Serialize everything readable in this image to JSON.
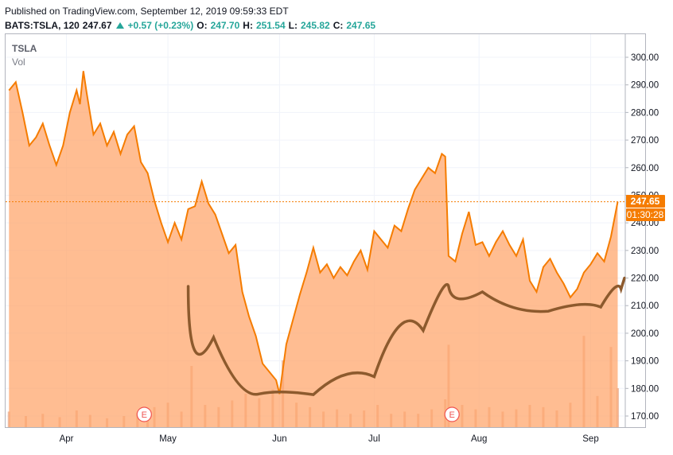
{
  "header": {
    "published": "Published on TradingView.com, September 12, 2019 09:59:33 EDT",
    "symbol": "BATS:TSLA, 120",
    "last": "247.67",
    "change": "+0.57 (+0.23%)",
    "open_label": "O:",
    "open": "247.70",
    "high_label": "H:",
    "high": "251.54",
    "low_label": "L:",
    "low": "245.82",
    "close_label": "C:",
    "close": "247.65"
  },
  "legend": {
    "symbol": "TSLA",
    "volume": "Vol"
  },
  "price_label": "247.65",
  "countdown_label": "01:30:28",
  "earnings_marker": "E",
  "colors": {
    "line": "#f57c00",
    "area": "#ffa76e",
    "up": "#26a69a",
    "annotation": "#8d5a2d"
  },
  "chart_data": {
    "type": "area",
    "title": "TSLA",
    "ylim": [
      166,
      305
    ],
    "y_ticks": [
      "300.00",
      "290.00",
      "280.00",
      "270.00",
      "260.00",
      "250.00",
      "240.00",
      "230.00",
      "220.00",
      "210.00",
      "200.00",
      "190.00",
      "180.00",
      "170.00"
    ],
    "x_ticks": [
      "Apr",
      "May",
      "Jun",
      "Jul",
      "Aug",
      "Sep"
    ],
    "last_price": 247.65,
    "series": [
      {
        "values": [
          [
            "2019-03-15",
            288
          ],
          [
            "2019-03-17",
            291
          ],
          [
            "2019-03-19",
            280
          ],
          [
            "2019-03-21",
            268
          ],
          [
            "2019-03-23",
            271
          ],
          [
            "2019-03-25",
            276
          ],
          [
            "2019-03-27",
            268
          ],
          [
            "2019-03-29",
            261
          ],
          [
            "2019-03-31",
            268
          ],
          [
            "2019-04-02",
            280
          ],
          [
            "2019-04-04",
            288
          ],
          [
            "2019-04-05",
            283
          ],
          [
            "2019-04-06",
            295
          ],
          [
            "2019-04-07",
            287
          ],
          [
            "2019-04-09",
            272
          ],
          [
            "2019-04-11",
            276
          ],
          [
            "2019-04-13",
            268
          ],
          [
            "2019-04-15",
            273
          ],
          [
            "2019-04-17",
            265
          ],
          [
            "2019-04-19",
            272
          ],
          [
            "2019-04-21",
            275
          ],
          [
            "2019-04-23",
            262
          ],
          [
            "2019-04-25",
            258
          ],
          [
            "2019-04-27",
            248
          ],
          [
            "2019-04-29",
            240
          ],
          [
            "2019-05-01",
            233
          ],
          [
            "2019-05-03",
            240
          ],
          [
            "2019-05-05",
            234
          ],
          [
            "2019-05-07",
            245
          ],
          [
            "2019-05-09",
            246
          ],
          [
            "2019-05-11",
            255
          ],
          [
            "2019-05-13",
            247
          ],
          [
            "2019-05-15",
            243
          ],
          [
            "2019-05-17",
            236
          ],
          [
            "2019-05-19",
            229
          ],
          [
            "2019-05-21",
            232
          ],
          [
            "2019-05-23",
            215
          ],
          [
            "2019-05-25",
            206
          ],
          [
            "2019-05-27",
            199
          ],
          [
            "2019-05-29",
            189
          ],
          [
            "2019-05-31",
            186
          ],
          [
            "2019-06-02",
            183
          ],
          [
            "2019-06-03",
            178
          ],
          [
            "2019-06-05",
            196
          ],
          [
            "2019-06-07",
            205
          ],
          [
            "2019-06-09",
            214
          ],
          [
            "2019-06-11",
            222
          ],
          [
            "2019-06-13",
            231
          ],
          [
            "2019-06-15",
            222
          ],
          [
            "2019-06-17",
            225
          ],
          [
            "2019-06-19",
            220
          ],
          [
            "2019-06-21",
            224
          ],
          [
            "2019-06-23",
            221
          ],
          [
            "2019-06-25",
            226
          ],
          [
            "2019-06-27",
            230
          ],
          [
            "2019-06-29",
            223
          ],
          [
            "2019-07-01",
            237
          ],
          [
            "2019-07-03",
            234
          ],
          [
            "2019-07-05",
            231
          ],
          [
            "2019-07-07",
            239
          ],
          [
            "2019-07-09",
            237
          ],
          [
            "2019-07-11",
            245
          ],
          [
            "2019-07-13",
            252
          ],
          [
            "2019-07-15",
            256
          ],
          [
            "2019-07-17",
            260
          ],
          [
            "2019-07-19",
            258
          ],
          [
            "2019-07-21",
            265
          ],
          [
            "2019-07-22",
            264
          ],
          [
            "2019-07-23",
            228
          ],
          [
            "2019-07-25",
            226
          ],
          [
            "2019-07-27",
            236
          ],
          [
            "2019-07-29",
            244
          ],
          [
            "2019-07-31",
            232
          ],
          [
            "2019-08-02",
            233
          ],
          [
            "2019-08-04",
            228
          ],
          [
            "2019-08-06",
            233
          ],
          [
            "2019-08-08",
            237
          ],
          [
            "2019-08-10",
            232
          ],
          [
            "2019-08-12",
            228
          ],
          [
            "2019-08-14",
            234
          ],
          [
            "2019-08-16",
            219
          ],
          [
            "2019-08-18",
            215
          ],
          [
            "2019-08-20",
            224
          ],
          [
            "2019-08-22",
            227
          ],
          [
            "2019-08-24",
            222
          ],
          [
            "2019-08-26",
            218
          ],
          [
            "2019-08-28",
            213
          ],
          [
            "2019-08-30",
            216
          ],
          [
            "2019-09-01",
            222
          ],
          [
            "2019-09-03",
            225
          ],
          [
            "2019-09-05",
            229
          ],
          [
            "2019-09-07",
            226
          ],
          [
            "2019-09-09",
            235
          ],
          [
            "2019-09-11",
            247.65
          ]
        ]
      }
    ],
    "volume_ylim": [
      0,
      100
    ],
    "volume": [
      [
        "2019-03-15",
        14
      ],
      [
        "2019-03-20",
        10
      ],
      [
        "2019-03-25",
        12
      ],
      [
        "2019-03-30",
        9
      ],
      [
        "2019-04-04",
        15
      ],
      [
        "2019-04-08",
        11
      ],
      [
        "2019-04-13",
        8
      ],
      [
        "2019-04-18",
        10
      ],
      [
        "2019-04-22",
        13
      ],
      [
        "2019-04-25",
        12
      ],
      [
        "2019-04-27",
        18
      ],
      [
        "2019-05-01",
        22
      ],
      [
        "2019-05-05",
        14
      ],
      [
        "2019-05-08",
        55
      ],
      [
        "2019-05-12",
        20
      ],
      [
        "2019-05-16",
        18
      ],
      [
        "2019-05-20",
        24
      ],
      [
        "2019-05-24",
        30
      ],
      [
        "2019-05-28",
        26
      ],
      [
        "2019-06-01",
        34
      ],
      [
        "2019-06-04",
        60
      ],
      [
        "2019-06-08",
        22
      ],
      [
        "2019-06-12",
        18
      ],
      [
        "2019-06-16",
        14
      ],
      [
        "2019-06-20",
        16
      ],
      [
        "2019-06-24",
        12
      ],
      [
        "2019-06-28",
        15
      ],
      [
        "2019-07-02",
        20
      ],
      [
        "2019-07-06",
        12
      ],
      [
        "2019-07-10",
        14
      ],
      [
        "2019-07-14",
        12
      ],
      [
        "2019-07-18",
        16
      ],
      [
        "2019-07-22",
        25
      ],
      [
        "2019-07-23",
        74
      ],
      [
        "2019-07-27",
        20
      ],
      [
        "2019-07-31",
        16
      ],
      [
        "2019-08-04",
        18
      ],
      [
        "2019-08-08",
        14
      ],
      [
        "2019-08-12",
        16
      ],
      [
        "2019-08-16",
        20
      ],
      [
        "2019-08-20",
        18
      ],
      [
        "2019-08-24",
        15
      ],
      [
        "2019-08-28",
        22
      ],
      [
        "2019-09-01",
        82
      ],
      [
        "2019-09-05",
        28
      ],
      [
        "2019-09-09",
        72
      ],
      [
        "2019-09-11",
        35
      ]
    ],
    "earnings_dates": [
      "2019-04-24",
      "2019-07-24"
    ],
    "annotation": "hand-drawn cup and handle curve"
  }
}
